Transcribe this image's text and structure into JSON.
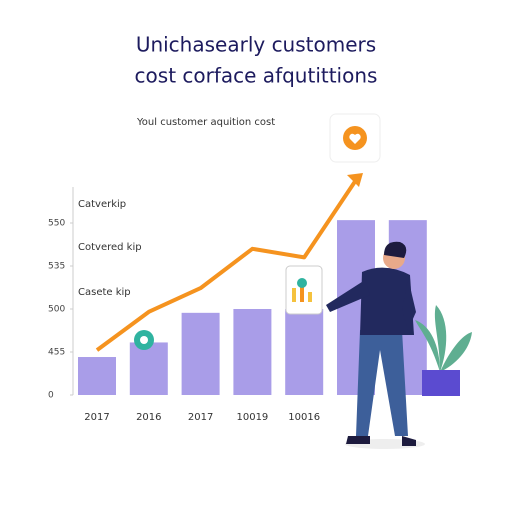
{
  "chart_data": {
    "type": "bar",
    "title_lines": [
      "Unichasearly customers",
      "cost corface afqutittions"
    ],
    "subtitle": "Youl customer aquition cost",
    "annotations": [
      "Catverkip",
      "Cotvered kip",
      "Casete kip"
    ],
    "categories": [
      "2017",
      "2016",
      "2017",
      "10019",
      "10016",
      null,
      null
    ],
    "values": [
      402,
      465,
      496,
      500,
      500,
      551,
      551
    ],
    "color": "#a99de8",
    "yticks": [
      0,
      455,
      500,
      535,
      550
    ],
    "line": {
      "values": [
        457,
        497,
        517,
        541,
        538,
        565,
        null
      ],
      "color": "#f5931f"
    }
  }
}
